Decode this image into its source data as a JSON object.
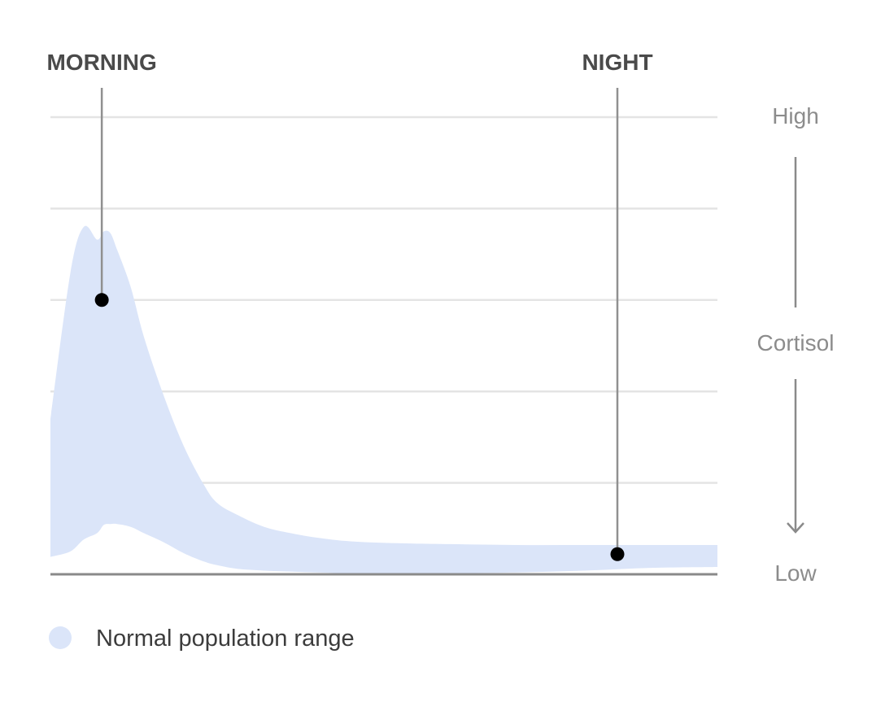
{
  "chart_data": {
    "type": "area",
    "title": "",
    "xlabel": "",
    "ylabel": "Cortisol",
    "y_high_label": "High",
    "y_low_label": "Low",
    "ylim": [
      0,
      5
    ],
    "xlim": [
      0,
      100
    ],
    "grid": true,
    "legend_position": "bottom-left",
    "colors": {
      "band": "#dbe5f9",
      "grid": "#e4e4e4",
      "axis": "#8a8a8a",
      "marker_line": "#909090",
      "marker_dot": "#000000"
    },
    "series": [
      {
        "name": "Normal population range",
        "kind": "band",
        "x": [
          0,
          3,
          5,
          7,
          8,
          9,
          10,
          12,
          14,
          17,
          20,
          23,
          25,
          28,
          32,
          36,
          40,
          45,
          52,
          60,
          70,
          80,
          90,
          100
        ],
        "upper": [
          1.7,
          3.3,
          3.8,
          3.66,
          3.75,
          3.73,
          3.55,
          3.15,
          2.6,
          1.95,
          1.4,
          0.98,
          0.78,
          0.65,
          0.52,
          0.45,
          0.4,
          0.36,
          0.34,
          0.33,
          0.32,
          0.32,
          0.32,
          0.32
        ],
        "lower": [
          0.19,
          0.25,
          0.38,
          0.45,
          0.54,
          0.55,
          0.55,
          0.52,
          0.45,
          0.35,
          0.23,
          0.14,
          0.1,
          0.06,
          0.04,
          0.03,
          0.02,
          0.01,
          0.01,
          0.01,
          0.02,
          0.04,
          0.07,
          0.08
        ]
      }
    ],
    "markers": [
      {
        "label": "MORNING",
        "x": 7.7,
        "y": 3.0
      },
      {
        "label": "NIGHT",
        "x": 85.0,
        "y": 0.22
      }
    ]
  }
}
